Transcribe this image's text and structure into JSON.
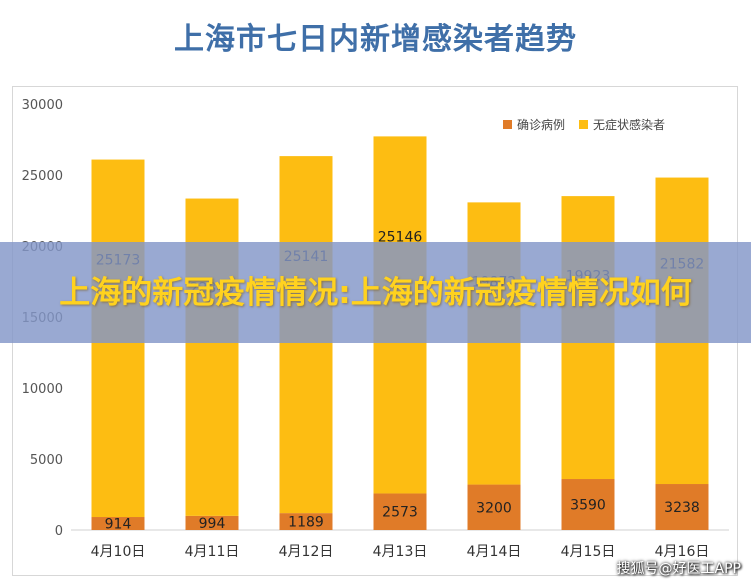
{
  "banner": {
    "text": "上海的新冠疫情情况:上海的新冠疫情情况如何"
  },
  "watermark": "搜狐号@好医工APP",
  "colors": {
    "title": "#3f6fa8",
    "confirmed": "#e07b28",
    "asymptomatic": "#fdbd12",
    "axis": "#d0d0d0",
    "grid": "#e6e6e6"
  },
  "chart_data": {
    "type": "bar",
    "stacked": true,
    "title": "上海市七日内新增感染者趋势",
    "categories": [
      "4月10日",
      "4月11日",
      "4月12日",
      "4月13日",
      "4月14日",
      "4月15日",
      "4月16日"
    ],
    "series": [
      {
        "name": "确诊病例",
        "color": "#e07b28",
        "values": [
          914,
          994,
          1189,
          2573,
          3200,
          3590,
          3238
        ]
      },
      {
        "name": "无症状感染者",
        "color": "#fdbd12",
        "values": [
          25173,
          22348,
          25141,
          25146,
          19872,
          19923,
          21582
        ]
      }
    ],
    "ylim": [
      0,
      30000
    ],
    "yticks": [
      0,
      5000,
      10000,
      15000,
      20000,
      25000,
      30000
    ],
    "grid": false,
    "legend": "top-right"
  }
}
